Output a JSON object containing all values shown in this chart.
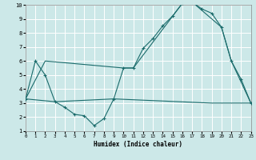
{
  "xlabel": "Humidex (Indice chaleur)",
  "bg_color": "#cce8e8",
  "grid_color": "#ffffff",
  "line_color": "#1a6b6b",
  "x_min": 0,
  "x_max": 23,
  "y_min": 1,
  "y_max": 10,
  "line1_x": [
    0,
    1,
    2,
    3,
    4,
    5,
    6,
    7,
    8,
    9,
    10,
    11,
    12,
    13,
    14,
    15,
    16,
    17,
    18,
    19,
    20,
    21,
    22,
    23
  ],
  "line1_y": [
    3.3,
    6.0,
    5.0,
    3.1,
    2.7,
    2.2,
    2.1,
    1.4,
    1.9,
    3.3,
    5.5,
    5.5,
    6.9,
    7.6,
    8.5,
    9.2,
    10.1,
    10.2,
    9.7,
    9.4,
    8.4,
    6.0,
    4.7,
    3.0
  ],
  "line2_x": [
    0,
    2,
    10,
    11,
    16,
    17,
    20,
    21,
    23
  ],
  "line2_y": [
    3.3,
    6.0,
    5.5,
    5.5,
    10.1,
    10.2,
    8.4,
    6.0,
    3.0
  ],
  "line3_x": [
    0,
    3,
    9,
    19,
    20,
    23
  ],
  "line3_y": [
    3.3,
    3.1,
    3.3,
    3.0,
    3.0,
    3.0
  ],
  "yticks": [
    1,
    2,
    3,
    4,
    5,
    6,
    7,
    8,
    9,
    10
  ],
  "xticks": [
    0,
    1,
    2,
    3,
    4,
    5,
    6,
    7,
    8,
    9,
    10,
    11,
    12,
    13,
    14,
    15,
    16,
    17,
    18,
    19,
    20,
    21,
    22,
    23
  ]
}
